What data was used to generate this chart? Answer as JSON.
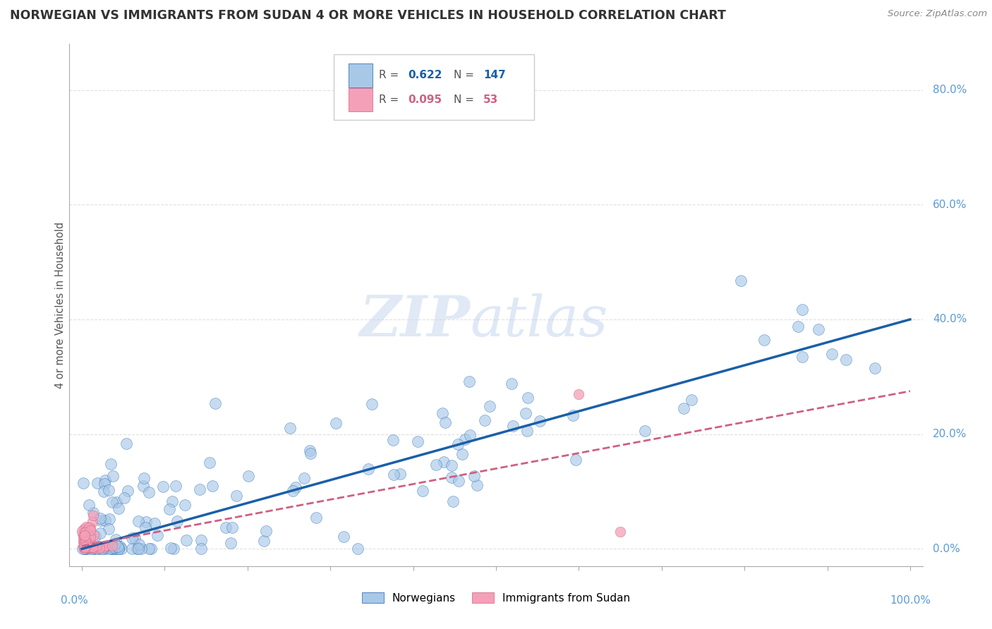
{
  "title": "NORWEGIAN VS IMMIGRANTS FROM SUDAN 4 OR MORE VEHICLES IN HOUSEHOLD CORRELATION CHART",
  "source": "Source: ZipAtlas.com",
  "ylabel": "4 or more Vehicles in Household",
  "legend_norwegian": "Norwegians",
  "legend_immigrant": "Immigrants from Sudan",
  "R_norwegian": 0.622,
  "N_norwegian": 147,
  "R_immigrant": 0.095,
  "N_immigrant": 53,
  "norwegian_color": "#A8C8E8",
  "immigrant_color": "#F4A0B8",
  "line_norwegian_color": "#1A5FA8",
  "line_immigrant_color": "#D06080",
  "background_color": "#FFFFFF",
  "grid_color": "#CCCCCC",
  "title_color": "#333333",
  "ytick_labels": [
    "0.0%",
    "20.0%",
    "40.0%",
    "60.0%",
    "80.0%"
  ],
  "ytick_vals": [
    0.0,
    0.2,
    0.4,
    0.6,
    0.8
  ],
  "nor_slope": 0.4,
  "nor_intercept": 0.0,
  "imm_slope": 0.27,
  "imm_intercept": 0.005
}
